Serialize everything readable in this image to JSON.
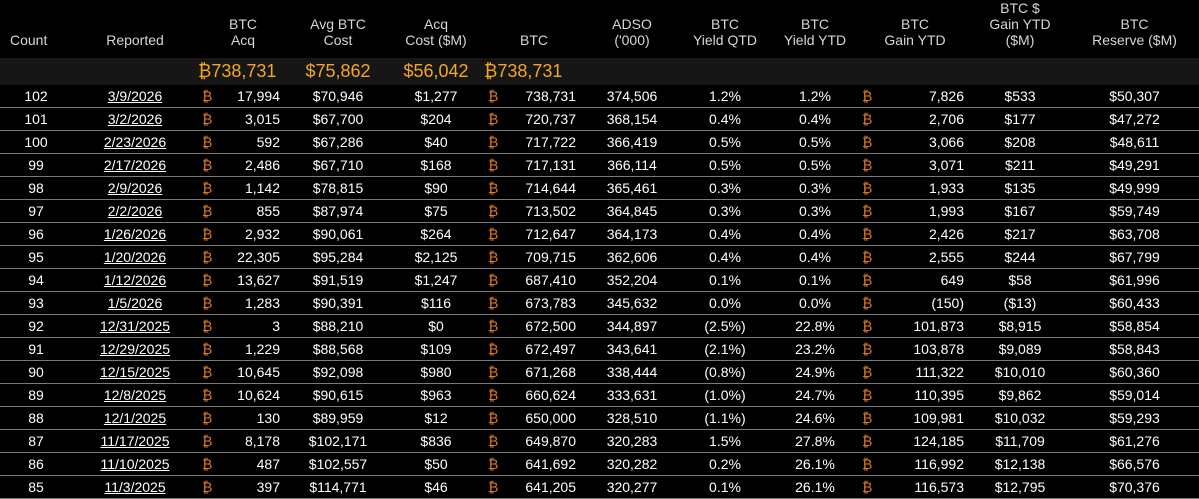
{
  "columns": [
    {
      "key": "count",
      "label": [
        "Count"
      ]
    },
    {
      "key": "reported",
      "label": [
        "Reported"
      ]
    },
    {
      "key": "btc_acq",
      "label": [
        "BTC",
        "Acq"
      ]
    },
    {
      "key": "avg_cost",
      "label": [
        "Avg BTC",
        "Cost"
      ]
    },
    {
      "key": "acq_cost",
      "label": [
        "Acq",
        "Cost ($M)"
      ]
    },
    {
      "key": "btc",
      "label": [
        "BTC"
      ]
    },
    {
      "key": "adso",
      "label": [
        "ADSO",
        "('000)"
      ]
    },
    {
      "key": "yield_qtd",
      "label": [
        "BTC",
        "Yield QTD"
      ]
    },
    {
      "key": "yield_ytd",
      "label": [
        "BTC",
        "Yield YTD"
      ]
    },
    {
      "key": "gain_ytd",
      "label": [
        "BTC",
        "Gain YTD"
      ]
    },
    {
      "key": "gain_usd",
      "label": [
        "BTC $",
        "Gain YTD",
        "($M)"
      ]
    },
    {
      "key": "reserve",
      "label": [
        "BTC",
        "Reserve ($M)"
      ]
    }
  ],
  "btc_symbol": "₿",
  "summary": {
    "btc_acq": "₿738,731",
    "avg_cost": "$75,862",
    "acq_cost": "$56,042",
    "btc": "₿738,731"
  },
  "rows": [
    {
      "count": "102",
      "reported": "3/9/2026",
      "btc_acq": "17,994",
      "avg_cost": "$70,946",
      "acq_cost": "$1,277",
      "btc": "738,731",
      "adso": "374,506",
      "yield_qtd": "1.2%",
      "yield_ytd": "1.2%",
      "gain_ytd": "7,826",
      "gain_usd": "$533",
      "reserve": "$50,307"
    },
    {
      "count": "101",
      "reported": "3/2/2026",
      "btc_acq": "3,015",
      "avg_cost": "$67,700",
      "acq_cost": "$204",
      "btc": "720,737",
      "adso": "368,154",
      "yield_qtd": "0.4%",
      "yield_ytd": "0.4%",
      "gain_ytd": "2,706",
      "gain_usd": "$177",
      "reserve": "$47,272"
    },
    {
      "count": "100",
      "reported": "2/23/2026",
      "btc_acq": "592",
      "avg_cost": "$67,286",
      "acq_cost": "$40",
      "btc": "717,722",
      "adso": "366,419",
      "yield_qtd": "0.5%",
      "yield_ytd": "0.5%",
      "gain_ytd": "3,066",
      "gain_usd": "$208",
      "reserve": "$48,611"
    },
    {
      "count": "99",
      "reported": "2/17/2026",
      "btc_acq": "2,486",
      "avg_cost": "$67,710",
      "acq_cost": "$168",
      "btc": "717,131",
      "adso": "366,114",
      "yield_qtd": "0.5%",
      "yield_ytd": "0.5%",
      "gain_ytd": "3,071",
      "gain_usd": "$211",
      "reserve": "$49,291"
    },
    {
      "count": "98",
      "reported": "2/9/2026",
      "btc_acq": "1,142",
      "avg_cost": "$78,815",
      "acq_cost": "$90",
      "btc": "714,644",
      "adso": "365,461",
      "yield_qtd": "0.3%",
      "yield_ytd": "0.3%",
      "gain_ytd": "1,933",
      "gain_usd": "$135",
      "reserve": "$49,999"
    },
    {
      "count": "97",
      "reported": "2/2/2026",
      "btc_acq": "855",
      "avg_cost": "$87,974",
      "acq_cost": "$75",
      "btc": "713,502",
      "adso": "364,845",
      "yield_qtd": "0.3%",
      "yield_ytd": "0.3%",
      "gain_ytd": "1,993",
      "gain_usd": "$167",
      "reserve": "$59,749"
    },
    {
      "count": "96",
      "reported": "1/26/2026",
      "btc_acq": "2,932",
      "avg_cost": "$90,061",
      "acq_cost": "$264",
      "btc": "712,647",
      "adso": "364,173",
      "yield_qtd": "0.4%",
      "yield_ytd": "0.4%",
      "gain_ytd": "2,426",
      "gain_usd": "$217",
      "reserve": "$63,708"
    },
    {
      "count": "95",
      "reported": "1/20/2026",
      "btc_acq": "22,305",
      "avg_cost": "$95,284",
      "acq_cost": "$2,125",
      "btc": "709,715",
      "adso": "362,606",
      "yield_qtd": "0.4%",
      "yield_ytd": "0.4%",
      "gain_ytd": "2,555",
      "gain_usd": "$244",
      "reserve": "$67,799"
    },
    {
      "count": "94",
      "reported": "1/12/2026",
      "btc_acq": "13,627",
      "avg_cost": "$91,519",
      "acq_cost": "$1,247",
      "btc": "687,410",
      "adso": "352,204",
      "yield_qtd": "0.1%",
      "yield_ytd": "0.1%",
      "gain_ytd": "649",
      "gain_usd": "$58",
      "reserve": "$61,996"
    },
    {
      "count": "93",
      "reported": "1/5/2026",
      "btc_acq": "1,283",
      "avg_cost": "$90,391",
      "acq_cost": "$116",
      "btc": "673,783",
      "adso": "345,632",
      "yield_qtd": "0.0%",
      "yield_ytd": "0.0%",
      "gain_ytd": "(150)",
      "gain_usd": "($13)",
      "reserve": "$60,433"
    },
    {
      "count": "92",
      "reported": "12/31/2025",
      "btc_acq": "3",
      "avg_cost": "$88,210",
      "acq_cost": "$0",
      "btc": "672,500",
      "adso": "344,897",
      "yield_qtd": "(2.5%)",
      "yield_ytd": "22.8%",
      "gain_ytd": "101,873",
      "gain_usd": "$8,915",
      "reserve": "$58,854"
    },
    {
      "count": "91",
      "reported": "12/29/2025",
      "btc_acq": "1,229",
      "avg_cost": "$88,568",
      "acq_cost": "$109",
      "btc": "672,497",
      "adso": "343,641",
      "yield_qtd": "(2.1%)",
      "yield_ytd": "23.2%",
      "gain_ytd": "103,878",
      "gain_usd": "$9,089",
      "reserve": "$58,843"
    },
    {
      "count": "90",
      "reported": "12/15/2025",
      "btc_acq": "10,645",
      "avg_cost": "$92,098",
      "acq_cost": "$980",
      "btc": "671,268",
      "adso": "338,444",
      "yield_qtd": "(0.8%)",
      "yield_ytd": "24.9%",
      "gain_ytd": "111,322",
      "gain_usd": "$10,010",
      "reserve": "$60,360"
    },
    {
      "count": "89",
      "reported": "12/8/2025",
      "btc_acq": "10,624",
      "avg_cost": "$90,615",
      "acq_cost": "$963",
      "btc": "660,624",
      "adso": "333,631",
      "yield_qtd": "(1.0%)",
      "yield_ytd": "24.7%",
      "gain_ytd": "110,395",
      "gain_usd": "$9,862",
      "reserve": "$59,014"
    },
    {
      "count": "88",
      "reported": "12/1/2025",
      "btc_acq": "130",
      "avg_cost": "$89,959",
      "acq_cost": "$12",
      "btc": "650,000",
      "adso": "328,510",
      "yield_qtd": "(1.1%)",
      "yield_ytd": "24.6%",
      "gain_ytd": "109,981",
      "gain_usd": "$10,032",
      "reserve": "$59,293"
    },
    {
      "count": "87",
      "reported": "11/17/2025",
      "btc_acq": "8,178",
      "avg_cost": "$102,171",
      "acq_cost": "$836",
      "btc": "649,870",
      "adso": "320,283",
      "yield_qtd": "1.5%",
      "yield_ytd": "27.8%",
      "gain_ytd": "124,185",
      "gain_usd": "$11,709",
      "reserve": "$61,276"
    },
    {
      "count": "86",
      "reported": "11/10/2025",
      "btc_acq": "487",
      "avg_cost": "$102,557",
      "acq_cost": "$50",
      "btc": "641,692",
      "adso": "320,282",
      "yield_qtd": "0.2%",
      "yield_ytd": "26.1%",
      "gain_ytd": "116,992",
      "gain_usd": "$12,138",
      "reserve": "$66,576"
    },
    {
      "count": "85",
      "reported": "11/3/2025",
      "btc_acq": "397",
      "avg_cost": "$114,771",
      "acq_cost": "$46",
      "btc": "641,205",
      "adso": "320,277",
      "yield_qtd": "0.1%",
      "yield_ytd": "26.1%",
      "gain_ytd": "116,573",
      "gain_usd": "$12,795",
      "reserve": "$70,376"
    }
  ],
  "colors": {
    "background": "#000000",
    "accent": "#f5a623",
    "btc_symbol": "#e07a1f",
    "header_text": "#d6d6d6"
  }
}
